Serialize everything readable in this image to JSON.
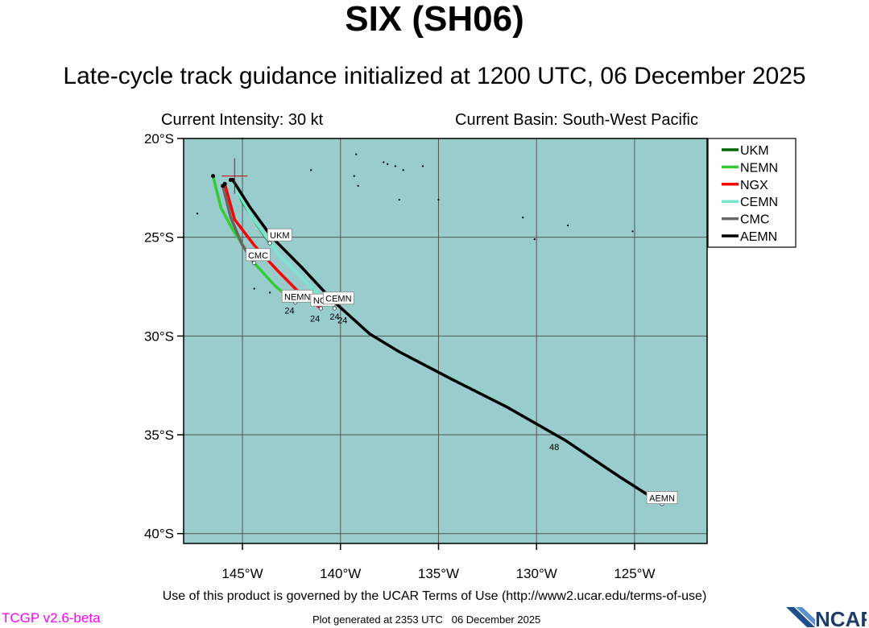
{
  "header": {
    "title": "SIX (SH06)",
    "subtitle": "Late-cycle track guidance initialized at 1200 UTC, 06 December 2025",
    "intensity": "Current Intensity: 30 kt",
    "basin": "Current Basin: South-West Pacific"
  },
  "footer": {
    "terms": "Use of this product is governed by the UCAR Terms of Use (http://www2.ucar.edu/terms-of-use)",
    "version": "TCGP v2.6-beta",
    "generated": "Plot generated at 2353 UTC   06 December 2025",
    "logo_text": "NCAR"
  },
  "colors": {
    "ocean": "#99cccc",
    "UKM": "#006600",
    "NEMN": "#33cc33",
    "NGX": "#ff0000",
    "CEMN": "#77e6cc",
    "CMC": "#666666",
    "AEMN": "#000000",
    "storm_marker": "#cc0000"
  },
  "chart_data": {
    "type": "map",
    "lon_range": [
      -148,
      -121.3
    ],
    "lat_range": [
      -40.5,
      -20
    ],
    "lon_ticks": [
      -145,
      -140,
      -135,
      -130,
      -125
    ],
    "lon_tick_labels": [
      "145°W",
      "140°W",
      "135°W",
      "130°W",
      "125°W"
    ],
    "lat_ticks": [
      -20,
      -25,
      -30,
      -35,
      -40
    ],
    "lat_tick_labels": [
      "20°S",
      "25°S",
      "30°S",
      "35°S",
      "40°S"
    ],
    "grid": true,
    "legend_position": "top-right",
    "storm_position": {
      "lon": -145.4,
      "lat": -21.9
    },
    "tracks": [
      {
        "name": "UKM",
        "points": [
          [
            -145.5,
            -22.1
          ],
          [
            -145.0,
            -23.2
          ],
          [
            -144.3,
            -24.3
          ],
          [
            -143.6,
            -25.3
          ]
        ],
        "end_label": "UKM",
        "label_pos": [
          -143.1,
          -24.9
        ],
        "hour_marks": []
      },
      {
        "name": "NEMN",
        "points": [
          [
            -146.5,
            -21.9
          ],
          [
            -146.1,
            -23.5
          ],
          [
            -145.5,
            -24.6
          ],
          [
            -144.4,
            -26.3
          ],
          [
            -143.3,
            -27.5
          ],
          [
            -142.3,
            -28.3
          ]
        ],
        "end_label": "NEMN",
        "label_pos": [
          -142.2,
          -28.0
        ],
        "hour_marks": [
          {
            "label": "24",
            "lon": -142.6,
            "lat": -28.7
          }
        ]
      },
      {
        "name": "NGX",
        "points": [
          [
            -145.9,
            -22.3
          ],
          [
            -145.4,
            -24.1
          ],
          [
            -144.4,
            -25.4
          ],
          [
            -143.2,
            -26.7
          ],
          [
            -142.1,
            -27.8
          ],
          [
            -141.0,
            -28.6
          ]
        ],
        "end_label": "NGX",
        "label_pos": [
          -140.9,
          -28.2
        ],
        "hour_marks": [
          {
            "label": "24",
            "lon": -141.3,
            "lat": -29.1
          }
        ]
      },
      {
        "name": "CEMN",
        "points": [
          [
            -145.6,
            -22.1
          ],
          [
            -144.5,
            -24.0
          ],
          [
            -143.2,
            -25.8
          ],
          [
            -141.9,
            -27.1
          ],
          [
            -140.9,
            -28.1
          ],
          [
            -140.3,
            -28.6
          ]
        ],
        "end_label": "CEMN",
        "label_pos": [
          -140.1,
          -28.1
        ],
        "hour_marks": [
          {
            "label": "24",
            "lon": -140.3,
            "lat": -29.0
          }
        ]
      },
      {
        "name": "CMC",
        "points": [
          [
            -146.0,
            -22.4
          ],
          [
            -145.6,
            -24.0
          ],
          [
            -145.0,
            -25.4
          ],
          [
            -144.4,
            -26.3
          ]
        ],
        "end_label": "CMC",
        "label_pos": [
          -144.2,
          -25.9
        ],
        "hour_marks": []
      },
      {
        "name": "AEMN",
        "points": [
          [
            -145.5,
            -22.1
          ],
          [
            -144.6,
            -23.5
          ],
          [
            -143.5,
            -25.0
          ],
          [
            -142.0,
            -26.5
          ],
          [
            -140.4,
            -28.2
          ],
          [
            -138.5,
            -29.9
          ],
          [
            -137.0,
            -30.8
          ],
          [
            -134.3,
            -32.2
          ],
          [
            -131.5,
            -33.6
          ],
          [
            -128.5,
            -35.3
          ],
          [
            -125.8,
            -37.1
          ],
          [
            -123.6,
            -38.5
          ]
        ],
        "end_label": "AEMN",
        "label_pos": [
          -123.6,
          -38.2
        ],
        "hour_marks": [
          {
            "label": "24",
            "lon": -139.9,
            "lat": -29.2
          },
          {
            "label": "48",
            "lon": -129.1,
            "lat": -35.6
          }
        ]
      }
    ],
    "island_points": [
      [
        -145.0,
        -20.0
      ],
      [
        -139.2,
        -20.8
      ],
      [
        -137.6,
        -21.3
      ],
      [
        -136.8,
        -21.6
      ],
      [
        -135.8,
        -21.4
      ],
      [
        -137.8,
        -21.2
      ],
      [
        -137.2,
        -21.4
      ],
      [
        -141.5,
        -21.6
      ],
      [
        -139.3,
        -21.9
      ],
      [
        -139.1,
        -22.4
      ],
      [
        -137.0,
        -23.1
      ],
      [
        -135.0,
        -23.1
      ],
      [
        -130.7,
        -24.0
      ],
      [
        -128.4,
        -24.4
      ],
      [
        -125.1,
        -24.7
      ],
      [
        -130.1,
        -25.1
      ],
      [
        -147.3,
        -23.8
      ],
      [
        -144.4,
        -27.6
      ],
      [
        -143.6,
        -27.8
      ],
      [
        -142.9,
        -28.0
      ]
    ]
  }
}
